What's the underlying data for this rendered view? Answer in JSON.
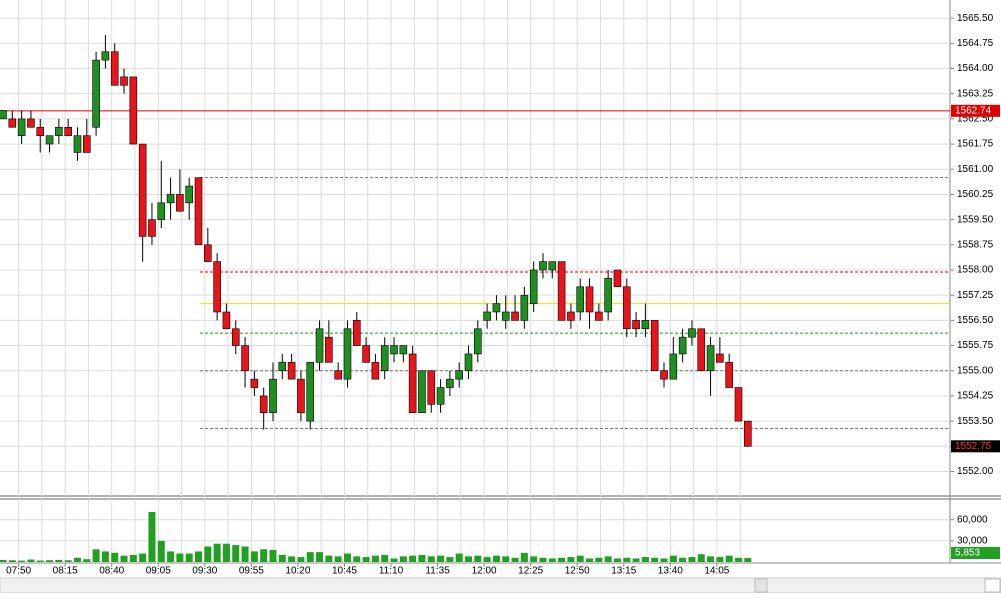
{
  "chart_data": {
    "type": "candlestick",
    "categories": [
      null,
      null,
      "07:50",
      null,
      null,
      null,
      null,
      "08:15",
      null,
      null,
      null,
      null,
      "08:40",
      null,
      null,
      null,
      null,
      "09:05",
      null,
      null,
      null,
      null,
      "09:30",
      null,
      null,
      null,
      null,
      "09:55",
      null,
      null,
      null,
      null,
      "10:20",
      null,
      null,
      null,
      null,
      "10:45",
      null,
      null,
      null,
      null,
      "11:10",
      null,
      null,
      null,
      null,
      "11:35",
      null,
      null,
      null,
      null,
      "12:00",
      null,
      null,
      null,
      null,
      "12:25",
      null,
      null,
      null,
      null,
      "12:50",
      null,
      null,
      null,
      null,
      "13:15",
      null,
      null,
      null,
      null,
      "13:40",
      null,
      null,
      null,
      null,
      "14:05",
      null,
      null,
      null
    ],
    "open": [
      1562.5,
      1562.5,
      1562.0,
      1562.5,
      1562.25,
      1561.75,
      1562.0,
      1562.25,
      1561.5,
      1562.0,
      1562.25,
      1564.25,
      1564.5,
      1563.75,
      1563.75,
      1561.75,
      1559.5,
      1559.5,
      1560.0,
      1560.25,
      1560.0,
      1560.75,
      1558.75,
      1558.25,
      1556.75,
      1556.25,
      1555.75,
      1554.75,
      1554.25,
      1553.75,
      1555.0,
      1555.25,
      1554.75,
      1553.5,
      1555.25,
      1556.0,
      1555.0,
      1554.75,
      1556.5,
      1555.75,
      1555.25,
      1555.0,
      1555.5,
      1555.5,
      1555.5,
      1553.75,
      1555.0,
      1554.0,
      1554.5,
      1554.75,
      1555.0,
      1555.5,
      1556.5,
      1556.75,
      1556.5,
      1556.75,
      1556.5,
      1557.0,
      1558.0,
      1558.0,
      1558.25,
      1556.75,
      1556.75,
      1557.5,
      1556.75,
      1556.75,
      1558.0,
      1557.5,
      1556.5,
      1556.25,
      1556.5,
      1555.0,
      1554.75,
      1555.5,
      1556.0,
      1556.25,
      1555.0,
      1555.5,
      1555.25,
      1554.5,
      1553.5
    ],
    "high": [
      1562.75,
      1562.75,
      1562.75,
      1562.75,
      1562.5,
      1562.0,
      1562.5,
      1562.5,
      1562.25,
      1562.5,
      1564.5,
      1565.0,
      1564.75,
      1564.0,
      1563.75,
      1561.75,
      1560.0,
      1561.25,
      1560.75,
      1561.0,
      1560.75,
      1560.75,
      1559.25,
      1558.5,
      1557.0,
      1556.5,
      1556.0,
      1555.0,
      1554.5,
      1555.25,
      1555.5,
      1555.5,
      1555.0,
      1555.25,
      1556.5,
      1556.5,
      1555.25,
      1556.5,
      1556.75,
      1556.0,
      1555.5,
      1556.0,
      1556.0,
      1555.75,
      1555.75,
      1555.0,
      1555.0,
      1554.75,
      1555.0,
      1555.25,
      1555.75,
      1556.5,
      1557.0,
      1557.25,
      1557.25,
      1557.25,
      1557.5,
      1558.25,
      1558.5,
      1558.25,
      1558.25,
      1557.0,
      1557.75,
      1557.75,
      1557.0,
      1558.0,
      1558.0,
      1557.75,
      1556.75,
      1557.0,
      1556.5,
      1555.25,
      1556.0,
      1556.25,
      1556.5,
      1556.25,
      1556.0,
      1556.0,
      1555.5,
      1554.5,
      1553.5
    ],
    "low": [
      1562.5,
      1562.25,
      1561.75,
      1562.25,
      1561.5,
      1561.5,
      1561.75,
      1562.0,
      1561.25,
      1561.5,
      1562.0,
      1564.0,
      1563.5,
      1563.25,
      1561.75,
      1558.25,
      1558.75,
      1559.25,
      1559.5,
      1559.75,
      1559.5,
      1558.75,
      1558.25,
      1556.5,
      1556.25,
      1555.5,
      1554.5,
      1554.25,
      1553.25,
      1553.5,
      1554.75,
      1554.75,
      1553.5,
      1553.25,
      1555.0,
      1555.25,
      1554.75,
      1554.5,
      1555.75,
      1555.25,
      1554.75,
      1554.75,
      1555.25,
      1555.25,
      1553.75,
      1553.75,
      1553.75,
      1553.75,
      1554.25,
      1554.5,
      1554.75,
      1555.25,
      1556.25,
      1556.5,
      1556.25,
      1556.5,
      1556.25,
      1556.75,
      1557.75,
      1557.75,
      1556.5,
      1556.25,
      1556.5,
      1556.25,
      1556.5,
      1556.5,
      1557.5,
      1556.0,
      1556.0,
      1556.0,
      1555.0,
      1554.5,
      1554.75,
      1555.25,
      1555.75,
      1555.0,
      1554.25,
      1555.25,
      1554.5,
      1553.5,
      1552.75
    ],
    "close": [
      1562.75,
      1562.25,
      1562.5,
      1562.25,
      1562.0,
      1562.0,
      1562.25,
      1562.0,
      1562.0,
      1561.5,
      1564.25,
      1564.5,
      1563.5,
      1563.5,
      1561.75,
      1559.0,
      1559.0,
      1560.0,
      1560.25,
      1559.75,
      1560.5,
      1558.75,
      1558.25,
      1556.75,
      1556.25,
      1555.75,
      1555.0,
      1554.5,
      1553.75,
      1554.75,
      1555.25,
      1554.75,
      1553.75,
      1555.25,
      1556.25,
      1555.25,
      1554.75,
      1556.25,
      1555.75,
      1555.25,
      1554.75,
      1555.75,
      1555.75,
      1555.75,
      1553.75,
      1555.0,
      1554.0,
      1554.5,
      1554.75,
      1555.0,
      1555.5,
      1556.25,
      1556.75,
      1557.0,
      1556.75,
      1556.5,
      1557.25,
      1558.0,
      1558.25,
      1558.25,
      1556.5,
      1556.5,
      1557.5,
      1556.75,
      1556.5,
      1557.75,
      1557.5,
      1556.25,
      1556.25,
      1556.5,
      1555.0,
      1554.75,
      1555.5,
      1556.0,
      1556.25,
      1555.0,
      1555.75,
      1555.25,
      1554.5,
      1553.5,
      1552.75
    ],
    "up_color": "#1f8f1f",
    "down_color": "#e8141c",
    "ylim": [
      1551.3,
      1566.04
    ],
    "yticks": [
      {
        "value": 1552.0,
        "label": "1552.00"
      },
      {
        "value": 1552.75,
        "label": "1552.75"
      },
      {
        "value": 1553.5,
        "label": "1553.50"
      },
      {
        "value": 1554.25,
        "label": "1554.25"
      },
      {
        "value": 1555.0,
        "label": "1555.00"
      },
      {
        "value": 1555.75,
        "label": "1555.75"
      },
      {
        "value": 1556.5,
        "label": "1556.50"
      },
      {
        "value": 1557.25,
        "label": "1557.25"
      },
      {
        "value": 1558.0,
        "label": "1558.00"
      },
      {
        "value": 1558.75,
        "label": "1558.75"
      },
      {
        "value": 1559.5,
        "label": "1559.50"
      },
      {
        "value": 1560.25,
        "label": "1560.25"
      },
      {
        "value": 1561.0,
        "label": "1561.00"
      },
      {
        "value": 1561.75,
        "label": "1561.75"
      },
      {
        "value": 1562.5,
        "label": "1562.50"
      },
      {
        "value": 1563.25,
        "label": "1563.25"
      },
      {
        "value": 1564.0,
        "label": "1564.00"
      },
      {
        "value": 1564.75,
        "label": "1564.75"
      },
      {
        "value": 1565.5,
        "label": "1565.50"
      }
    ],
    "grid": true,
    "levels": [
      {
        "value": 1562.74,
        "label": "1562.74",
        "color": "#e00000",
        "style": "solid"
      },
      {
        "value": 1560.75,
        "color": "#777777",
        "style": "dashed"
      },
      {
        "value": 1557.94,
        "color": "#e00000",
        "style": "dashed"
      },
      {
        "value": 1557.0,
        "color": "#f0e000",
        "style": "solid"
      },
      {
        "value": 1556.12,
        "color": "#14a014",
        "style": "dashed"
      },
      {
        "value": 1555.0,
        "color": "#777777",
        "style": "dashed"
      },
      {
        "value": 1553.28,
        "color": "#777777",
        "style": "dashed"
      }
    ],
    "last_price_label": "1552.75",
    "volume": {
      "values": [
        3000,
        2500,
        2000,
        3500,
        2000,
        2500,
        3000,
        2500,
        6000,
        4000,
        18000,
        15000,
        13000,
        9000,
        10000,
        12000,
        71000,
        30000,
        15000,
        12000,
        12000,
        15000,
        22000,
        26000,
        26000,
        24000,
        22000,
        15000,
        18000,
        17000,
        10000,
        8000,
        7000,
        14000,
        14000,
        9000,
        8000,
        12000,
        8000,
        7000,
        9000,
        10000,
        5000,
        8000,
        9000,
        10000,
        8000,
        9000,
        7000,
        12000,
        8000,
        9000,
        7000,
        9000,
        8000,
        6000,
        13000,
        8000,
        6000,
        5000,
        6000,
        7000,
        9000,
        5000,
        6000,
        8000,
        5000,
        6000,
        5000,
        7000,
        6000,
        5000,
        9000,
        6000,
        7000,
        11000,
        8000,
        7000,
        9000,
        6000,
        5853
      ],
      "last_value_label": "5,853",
      "color": "#22a022",
      "ylim": [
        0,
        88000
      ],
      "yticks": [
        {
          "value": 30000,
          "label": "30,000"
        },
        {
          "value": 60000,
          "label": "60,000"
        }
      ]
    }
  }
}
